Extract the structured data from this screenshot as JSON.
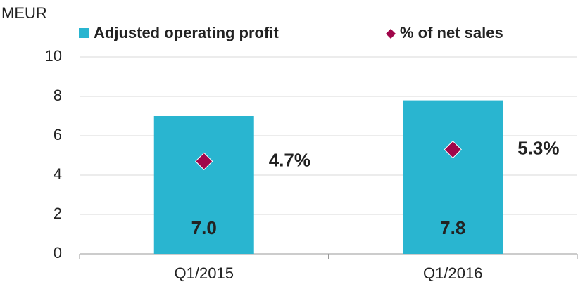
{
  "chart_data": {
    "type": "bar",
    "y_label": "MEUR",
    "categories": [
      "Q1/2015",
      "Q1/2016"
    ],
    "series": [
      {
        "name": "Adjusted operating profit",
        "color": "#29b5d0",
        "values": [
          7.0,
          7.8
        ],
        "value_labels": [
          "7.0",
          "7.8"
        ]
      },
      {
        "name": "% of net sales",
        "color": "#a0064a",
        "marker": "diamond",
        "values": [
          4.7,
          5.3
        ],
        "value_labels": [
          "4.7%",
          "5.3%"
        ]
      }
    ],
    "ylim": [
      0,
      10
    ],
    "yticks": [
      0,
      2,
      4,
      6,
      8,
      10
    ],
    "grid": true
  }
}
